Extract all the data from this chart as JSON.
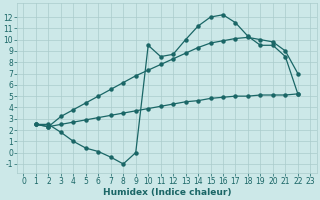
{
  "bg_color": "#cce8e8",
  "grid_color": "#aacccc",
  "line_color": "#1a6666",
  "line_width": 0.9,
  "marker_size": 2.2,
  "xlabel": "Humidex (Indice chaleur)",
  "xlabel_fontsize": 6.5,
  "tick_fontsize": 5.5,
  "xlim": [
    -0.5,
    23.5
  ],
  "ylim": [
    -1.8,
    13.2
  ],
  "xticks": [
    0,
    1,
    2,
    3,
    4,
    5,
    6,
    7,
    8,
    9,
    10,
    11,
    12,
    13,
    14,
    15,
    16,
    17,
    18,
    19,
    20,
    21,
    22,
    23
  ],
  "yticks": [
    -1,
    0,
    1,
    2,
    3,
    4,
    5,
    6,
    7,
    8,
    9,
    10,
    11,
    12
  ],
  "curve1_x": [
    1,
    2,
    3,
    4,
    5,
    6,
    7,
    8,
    9,
    10,
    11,
    12,
    13,
    14,
    15,
    16,
    17,
    18,
    19,
    20,
    21,
    22
  ],
  "curve1_y": [
    2.5,
    2.5,
    1.8,
    1.0,
    0.4,
    0.1,
    -0.4,
    -1.0,
    0.0,
    9.5,
    8.5,
    8.7,
    10.0,
    11.2,
    12.0,
    12.2,
    11.5,
    10.3,
    9.5,
    9.5,
    8.5,
    5.2
  ],
  "curve2_x": [
    1,
    2,
    3,
    4,
    5,
    6,
    7,
    8,
    9,
    10,
    11,
    12,
    13,
    14,
    15,
    16,
    17,
    18,
    19,
    20,
    21,
    22
  ],
  "curve2_y": [
    2.5,
    2.3,
    2.5,
    2.7,
    2.9,
    3.1,
    3.3,
    3.5,
    3.7,
    3.9,
    4.1,
    4.3,
    4.5,
    4.6,
    4.8,
    4.9,
    5.0,
    5.0,
    5.1,
    5.1,
    5.1,
    5.2
  ],
  "curve3_x": [
    1,
    2,
    3,
    4,
    5,
    6,
    7,
    8,
    9,
    10,
    11,
    12,
    13,
    14,
    15,
    16,
    17,
    18,
    19,
    20,
    21,
    22
  ],
  "curve3_y": [
    2.5,
    2.3,
    3.2,
    3.8,
    4.4,
    5.0,
    5.6,
    6.2,
    6.8,
    7.3,
    7.8,
    8.3,
    8.8,
    9.3,
    9.7,
    9.9,
    10.1,
    10.2,
    10.0,
    9.8,
    9.0,
    7.0
  ]
}
